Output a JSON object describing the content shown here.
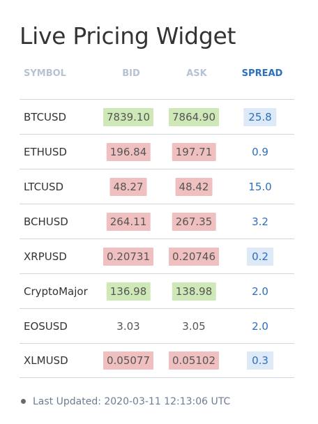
{
  "title": "Live Pricing Widget",
  "headers": {
    "symbol": "SYMBOL",
    "bid": "BID",
    "ask": "ASK",
    "spread": "SPREAD"
  },
  "rows": [
    {
      "symbol": "BTCUSD",
      "bid": "7839.10",
      "ask": "7864.90",
      "spread": "25.8",
      "bid_state": "up",
      "ask_state": "up",
      "spread_highlight": true
    },
    {
      "symbol": "ETHUSD",
      "bid": "196.84",
      "ask": "197.71",
      "spread": "0.9",
      "bid_state": "down",
      "ask_state": "down",
      "spread_highlight": false
    },
    {
      "symbol": "LTCUSD",
      "bid": "48.27",
      "ask": "48.42",
      "spread": "15.0",
      "bid_state": "down",
      "ask_state": "down",
      "spread_highlight": false
    },
    {
      "symbol": "BCHUSD",
      "bid": "264.11",
      "ask": "267.35",
      "spread": "3.2",
      "bid_state": "down",
      "ask_state": "down",
      "spread_highlight": false
    },
    {
      "symbol": "XRPUSD",
      "bid": "0.20731",
      "ask": "0.20746",
      "spread": "0.2",
      "bid_state": "down",
      "ask_state": "down",
      "spread_highlight": true
    },
    {
      "symbol": "CryptoMajor",
      "bid": "136.98",
      "ask": "138.98",
      "spread": "2.0",
      "bid_state": "up",
      "ask_state": "up",
      "spread_highlight": false
    },
    {
      "symbol": "EOSUSD",
      "bid": "3.03",
      "ask": "3.05",
      "spread": "2.0",
      "bid_state": "none",
      "ask_state": "none",
      "spread_highlight": false
    },
    {
      "symbol": "XLMUSD",
      "bid": "0.05077",
      "ask": "0.05102",
      "spread": "0.3",
      "bid_state": "down",
      "ask_state": "down",
      "spread_highlight": true
    }
  ],
  "footer": {
    "label": "Last Updated: 2020-03-11 12:13:06 UTC"
  },
  "colors": {
    "up": "#cfe8b8",
    "down": "#f0c0c0",
    "spread_highlight": "#dde9f7",
    "spread_text": "#2c6fbf",
    "header_muted": "#b6c3d2"
  }
}
